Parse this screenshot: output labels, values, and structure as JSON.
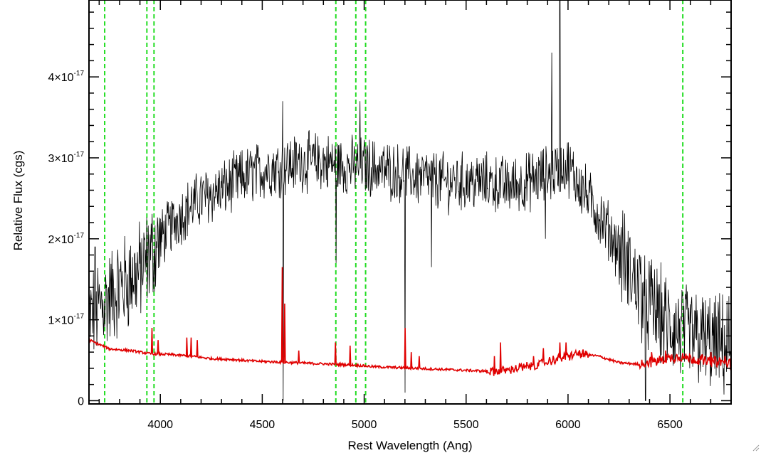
{
  "chart_data": {
    "type": "line",
    "title": "",
    "xlabel": "Rest Wavelength (Ang)",
    "ylabel": "Relative Flux (cgs)",
    "xlim": [
      3650,
      6800
    ],
    "ylim": [
      -0.04,
      4.95
    ],
    "y_exponent_note": "values in units of 1e-17",
    "grid": false,
    "legend": "none",
    "x_ticks": [
      {
        "value": 4000,
        "label": "4000"
      },
      {
        "value": 4500,
        "label": "4500"
      },
      {
        "value": 5000,
        "label": "5000"
      },
      {
        "value": 5500,
        "label": "5500"
      },
      {
        "value": 6000,
        "label": "6000"
      },
      {
        "value": 6500,
        "label": "6500"
      }
    ],
    "y_ticks": [
      {
        "value": 0,
        "mantissa": "0",
        "exponent": ""
      },
      {
        "value": 1,
        "mantissa": "1×10",
        "exponent": "-17"
      },
      {
        "value": 2,
        "mantissa": "2×10",
        "exponent": "-17"
      },
      {
        "value": 3,
        "mantissa": "3×10",
        "exponent": "-17"
      },
      {
        "value": 4,
        "mantissa": "4×10",
        "exponent": "-17"
      }
    ],
    "x_minor_step": 100,
    "y_minor_step": 0.2,
    "vertical_lines": [
      3727,
      3934,
      3969,
      4861,
      4959,
      5007,
      6563
    ],
    "series": [
      {
        "color": "#000000",
        "style": "noisy spectrum",
        "envelope_x": [
          3650,
          3700,
          3800,
          3900,
          4000,
          4100,
          4200,
          4300,
          4400,
          4500,
          4600,
          4700,
          4800,
          4900,
          5000,
          5100,
          5200,
          5300,
          5400,
          5500,
          5600,
          5700,
          5800,
          5900,
          6000,
          6100,
          6200,
          6300,
          6400,
          6500,
          6600,
          6700,
          6800
        ],
        "envelope_y": [
          1.0,
          1.15,
          1.4,
          1.6,
          2.0,
          2.3,
          2.5,
          2.6,
          2.75,
          2.85,
          2.9,
          2.95,
          2.95,
          2.9,
          2.9,
          2.85,
          2.8,
          2.75,
          2.7,
          2.7,
          2.7,
          2.65,
          2.7,
          2.8,
          2.9,
          2.5,
          2.1,
          1.6,
          1.2,
          0.9,
          0.8,
          0.7,
          0.65
        ],
        "spikes": [
          {
            "x": 3680,
            "y": 1.9
          },
          {
            "x": 4600,
            "y": 3.7
          },
          {
            "x": 4602,
            "y": 0.0
          },
          {
            "x": 4862,
            "y": 1.7
          },
          {
            "x": 4980,
            "y": 3.7
          },
          {
            "x": 5200,
            "y": 0.1
          },
          {
            "x": 5202,
            "y": 2.9
          },
          {
            "x": 5330,
            "y": 1.65
          },
          {
            "x": 5890,
            "y": 2.0
          },
          {
            "x": 5920,
            "y": 4.3
          },
          {
            "x": 5960,
            "y": 4.95
          },
          {
            "x": 6380,
            "y": 0.0
          }
        ]
      },
      {
        "color": "#e00000",
        "style": "model continuum",
        "x": [
          3650,
          3750,
          3850,
          3950,
          4050,
          4150,
          4250,
          4350,
          4450,
          4550,
          4650,
          4750,
          4850,
          4950,
          5050,
          5150,
          5250,
          5350,
          5450,
          5550,
          5650,
          5750,
          5850,
          5950,
          6050,
          6150,
          6250,
          6350,
          6450,
          6550,
          6650,
          6750,
          6800
        ],
        "y": [
          0.75,
          0.64,
          0.62,
          0.58,
          0.57,
          0.55,
          0.52,
          0.51,
          0.49,
          0.48,
          0.47,
          0.46,
          0.45,
          0.44,
          0.42,
          0.41,
          0.4,
          0.39,
          0.38,
          0.37,
          0.36,
          0.4,
          0.44,
          0.52,
          0.58,
          0.55,
          0.47,
          0.45,
          0.5,
          0.55,
          0.5,
          0.48,
          0.45
        ],
        "peaks": [
          {
            "x": 3960,
            "y": 0.9
          },
          {
            "x": 3990,
            "y": 0.75
          },
          {
            "x": 4130,
            "y": 0.78
          },
          {
            "x": 4150,
            "y": 0.78
          },
          {
            "x": 4180,
            "y": 0.75
          },
          {
            "x": 4598,
            "y": 1.65
          },
          {
            "x": 4610,
            "y": 1.2
          },
          {
            "x": 4680,
            "y": 0.62
          },
          {
            "x": 4860,
            "y": 0.72
          },
          {
            "x": 4930,
            "y": 0.68
          },
          {
            "x": 5200,
            "y": 0.9
          },
          {
            "x": 5230,
            "y": 0.6
          },
          {
            "x": 5270,
            "y": 0.55
          },
          {
            "x": 5640,
            "y": 0.55
          },
          {
            "x": 5670,
            "y": 0.72
          },
          {
            "x": 5830,
            "y": 0.55
          },
          {
            "x": 5880,
            "y": 0.65
          },
          {
            "x": 5960,
            "y": 0.72
          },
          {
            "x": 5990,
            "y": 0.72
          },
          {
            "x": 6410,
            "y": 0.6
          },
          {
            "x": 6480,
            "y": 0.62
          },
          {
            "x": 6700,
            "y": 0.6
          },
          {
            "x": 6770,
            "y": 0.55
          }
        ]
      }
    ]
  }
}
